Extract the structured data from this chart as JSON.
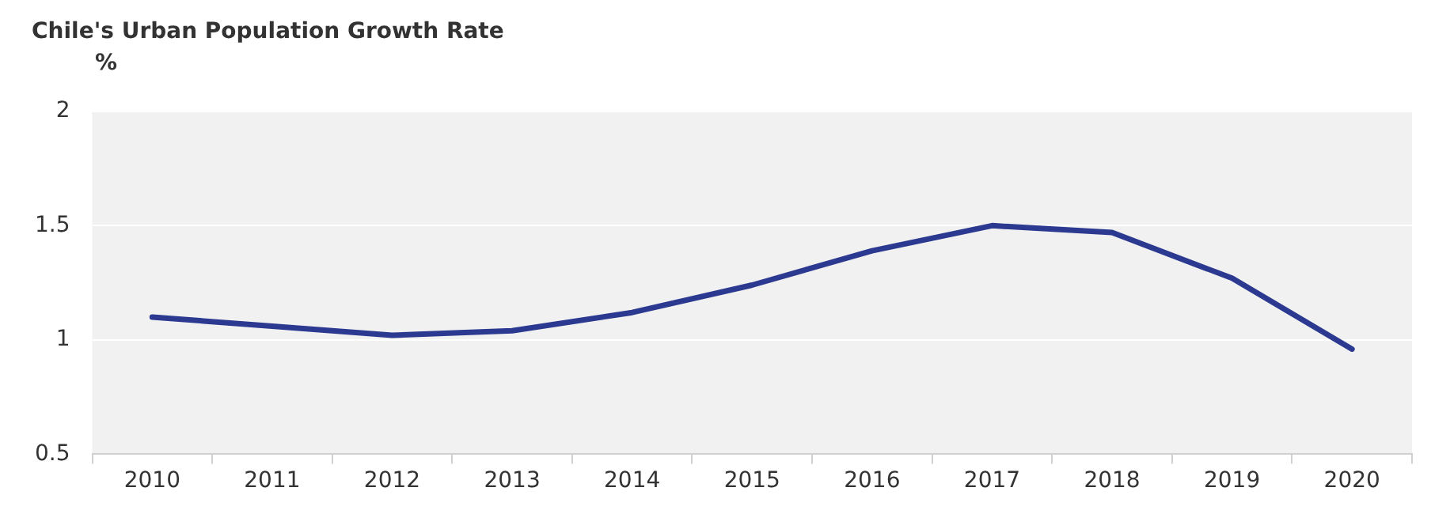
{
  "chart_data": {
    "type": "line",
    "title": "Chile's Urban Population Growth Rate",
    "ylabel": "%",
    "categories": [
      "2010",
      "2011",
      "2012",
      "2013",
      "2014",
      "2015",
      "2016",
      "2017",
      "2018",
      "2019",
      "2020"
    ],
    "series": [
      {
        "color": "#2b3990",
        "values": [
          1.1,
          1.06,
          1.02,
          1.04,
          1.12,
          1.24,
          1.39,
          1.5,
          1.47,
          1.27,
          0.96
        ]
      }
    ],
    "ylim": [
      0.5,
      2
    ],
    "yticks": [
      0.5,
      1,
      1.5,
      2
    ],
    "grid": "y",
    "legend": false,
    "marker": "none",
    "line_style": "solid"
  }
}
